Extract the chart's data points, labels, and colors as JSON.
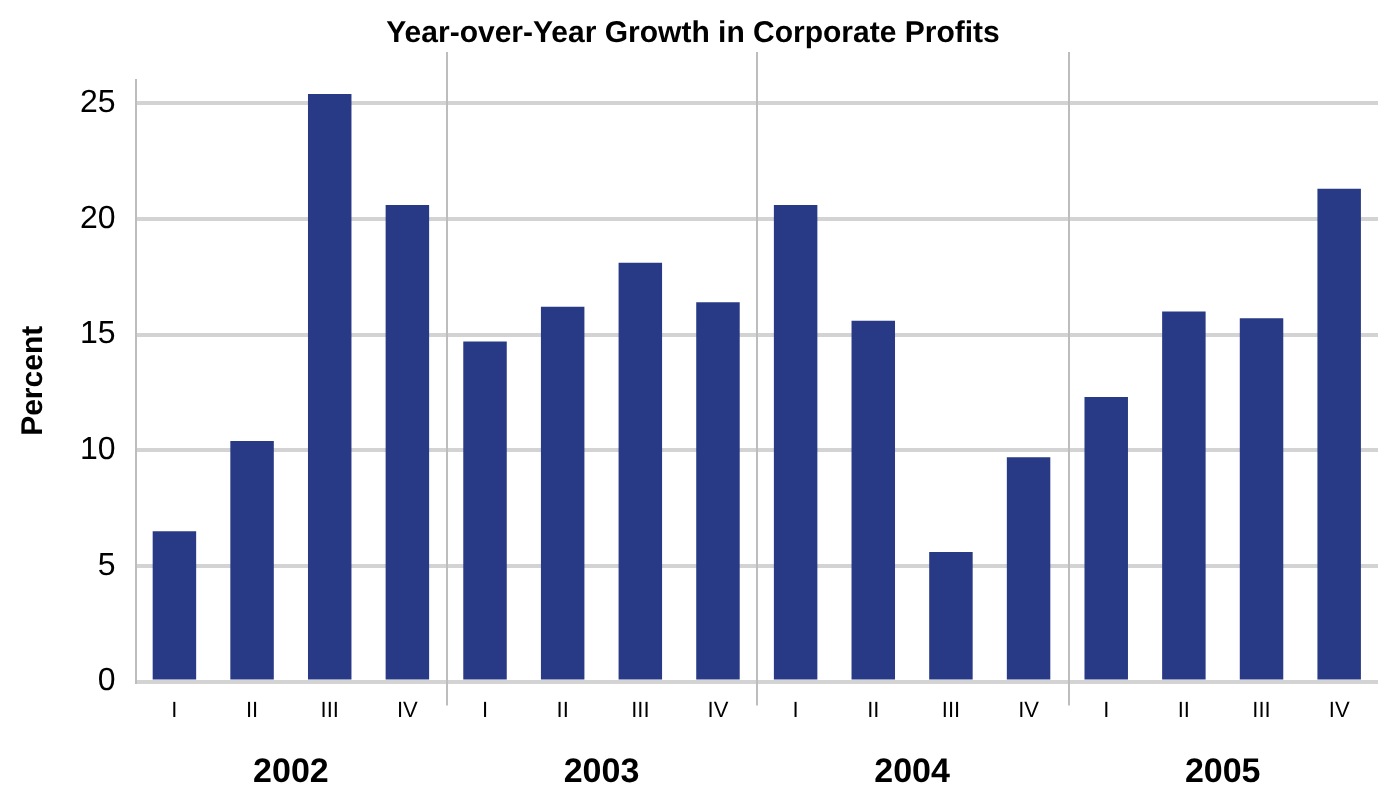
{
  "chart_data": {
    "type": "bar",
    "title": "Year-over-Year Growth in Corporate Profits",
    "ylabel": "Percent",
    "categories": [
      "I",
      "II",
      "III",
      "IV",
      "I",
      "II",
      "III",
      "IV",
      "I",
      "II",
      "III",
      "IV",
      "I",
      "II",
      "III",
      "IV"
    ],
    "values": [
      6.5,
      10.4,
      25.4,
      20.6,
      14.7,
      16.2,
      18.1,
      16.4,
      20.6,
      15.6,
      5.6,
      9.7,
      12.3,
      16.0,
      15.7,
      21.3
    ],
    "color": "#283a85",
    "ylim": [
      0,
      26
    ],
    "yticks": [
      0,
      5,
      10,
      15,
      20,
      25
    ],
    "grid": "y",
    "annotations": [
      "2002",
      "2003",
      "2004",
      "2005"
    ]
  }
}
